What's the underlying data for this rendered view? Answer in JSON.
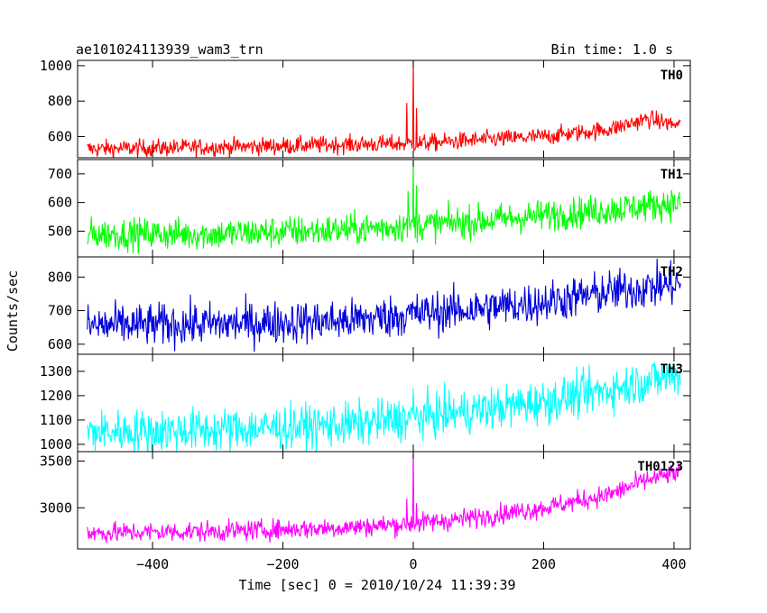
{
  "chart_data": {
    "type": "line",
    "title": "ae101024113939_wam3_trn",
    "bin_time_label": "Bin time: 1.0 s",
    "xlabel": "Time [sec] 0 = 2010/10/24 11:39:39",
    "ylabel": "Counts/sec",
    "xlim": [
      -515,
      425
    ],
    "x_range_data": [
      -500,
      410
    ],
    "x_ticks": [
      -400,
      -200,
      0,
      200,
      400
    ],
    "x_tick_labels": [
      "−400",
      "−200",
      "0",
      "200",
      "400"
    ],
    "grid": false,
    "panels": [
      {
        "name": "TH0",
        "color": "#ff0000",
        "ylim": [
          480,
          1030
        ],
        "y_ticks": [
          600,
          800,
          1000
        ],
        "y_tick_labels": [
          "600",
          "800",
          "1000"
        ],
        "trend_x": [
          -500,
          -300,
          -100,
          0,
          100,
          200,
          300,
          360,
          410
        ],
        "trend_y": [
          530,
          540,
          555,
          560,
          580,
          600,
          640,
          700,
          660
        ],
        "noise": 25,
        "spikes": [
          [
            -10,
            790
          ],
          [
            0,
            1030
          ],
          [
            5,
            760
          ]
        ]
      },
      {
        "name": "TH1",
        "color": "#00ff00",
        "ylim": [
          410,
          750
        ],
        "y_ticks": [
          500,
          600,
          700
        ],
        "y_tick_labels": [
          "500",
          "600",
          "700"
        ],
        "trend_x": [
          -500,
          -300,
          -100,
          0,
          100,
          200,
          300,
          410
        ],
        "trend_y": [
          490,
          490,
          505,
          520,
          535,
          555,
          575,
          600
        ],
        "noise": 28,
        "spikes": [
          [
            -8,
            640
          ],
          [
            0,
            745
          ],
          [
            5,
            660
          ]
        ]
      },
      {
        "name": "TH2",
        "color": "#0000dd",
        "ylim": [
          570,
          860
        ],
        "y_ticks": [
          600,
          700,
          800
        ],
        "y_tick_labels": [
          "600",
          "700",
          "800"
        ],
        "trend_x": [
          -500,
          -300,
          -100,
          0,
          100,
          200,
          300,
          410
        ],
        "trend_y": [
          655,
          660,
          670,
          690,
          705,
          725,
          755,
          780
        ],
        "noise": 32,
        "spikes": []
      },
      {
        "name": "TH3",
        "color": "#00ffff",
        "ylim": [
          970,
          1370
        ],
        "y_ticks": [
          1000,
          1100,
          1200,
          1300
        ],
        "y_tick_labels": [
          "1000",
          "1100",
          "1200",
          "1300"
        ],
        "trend_x": [
          -500,
          -300,
          -100,
          0,
          100,
          200,
          300,
          410
        ],
        "trend_y": [
          1050,
          1060,
          1080,
          1110,
          1140,
          1175,
          1225,
          1290
        ],
        "noise": 45,
        "spikes": [
          [
            0,
            1230
          ]
        ]
      },
      {
        "name": "TH0123",
        "color": "#ff00ff",
        "ylim": [
          2560,
          3600
        ],
        "y_ticks": [
          3000,
          3500
        ],
        "y_tick_labels": [
          "3000",
          "3500"
        ],
        "trend_x": [
          -500,
          -300,
          -100,
          0,
          100,
          200,
          300,
          360,
          410
        ],
        "trend_y": [
          2730,
          2750,
          2790,
          2830,
          2900,
          3000,
          3140,
          3300,
          3380
        ],
        "noise": 55,
        "spikes": [
          [
            -10,
            3100
          ],
          [
            0,
            3600
          ],
          [
            5,
            3050
          ]
        ]
      }
    ]
  }
}
